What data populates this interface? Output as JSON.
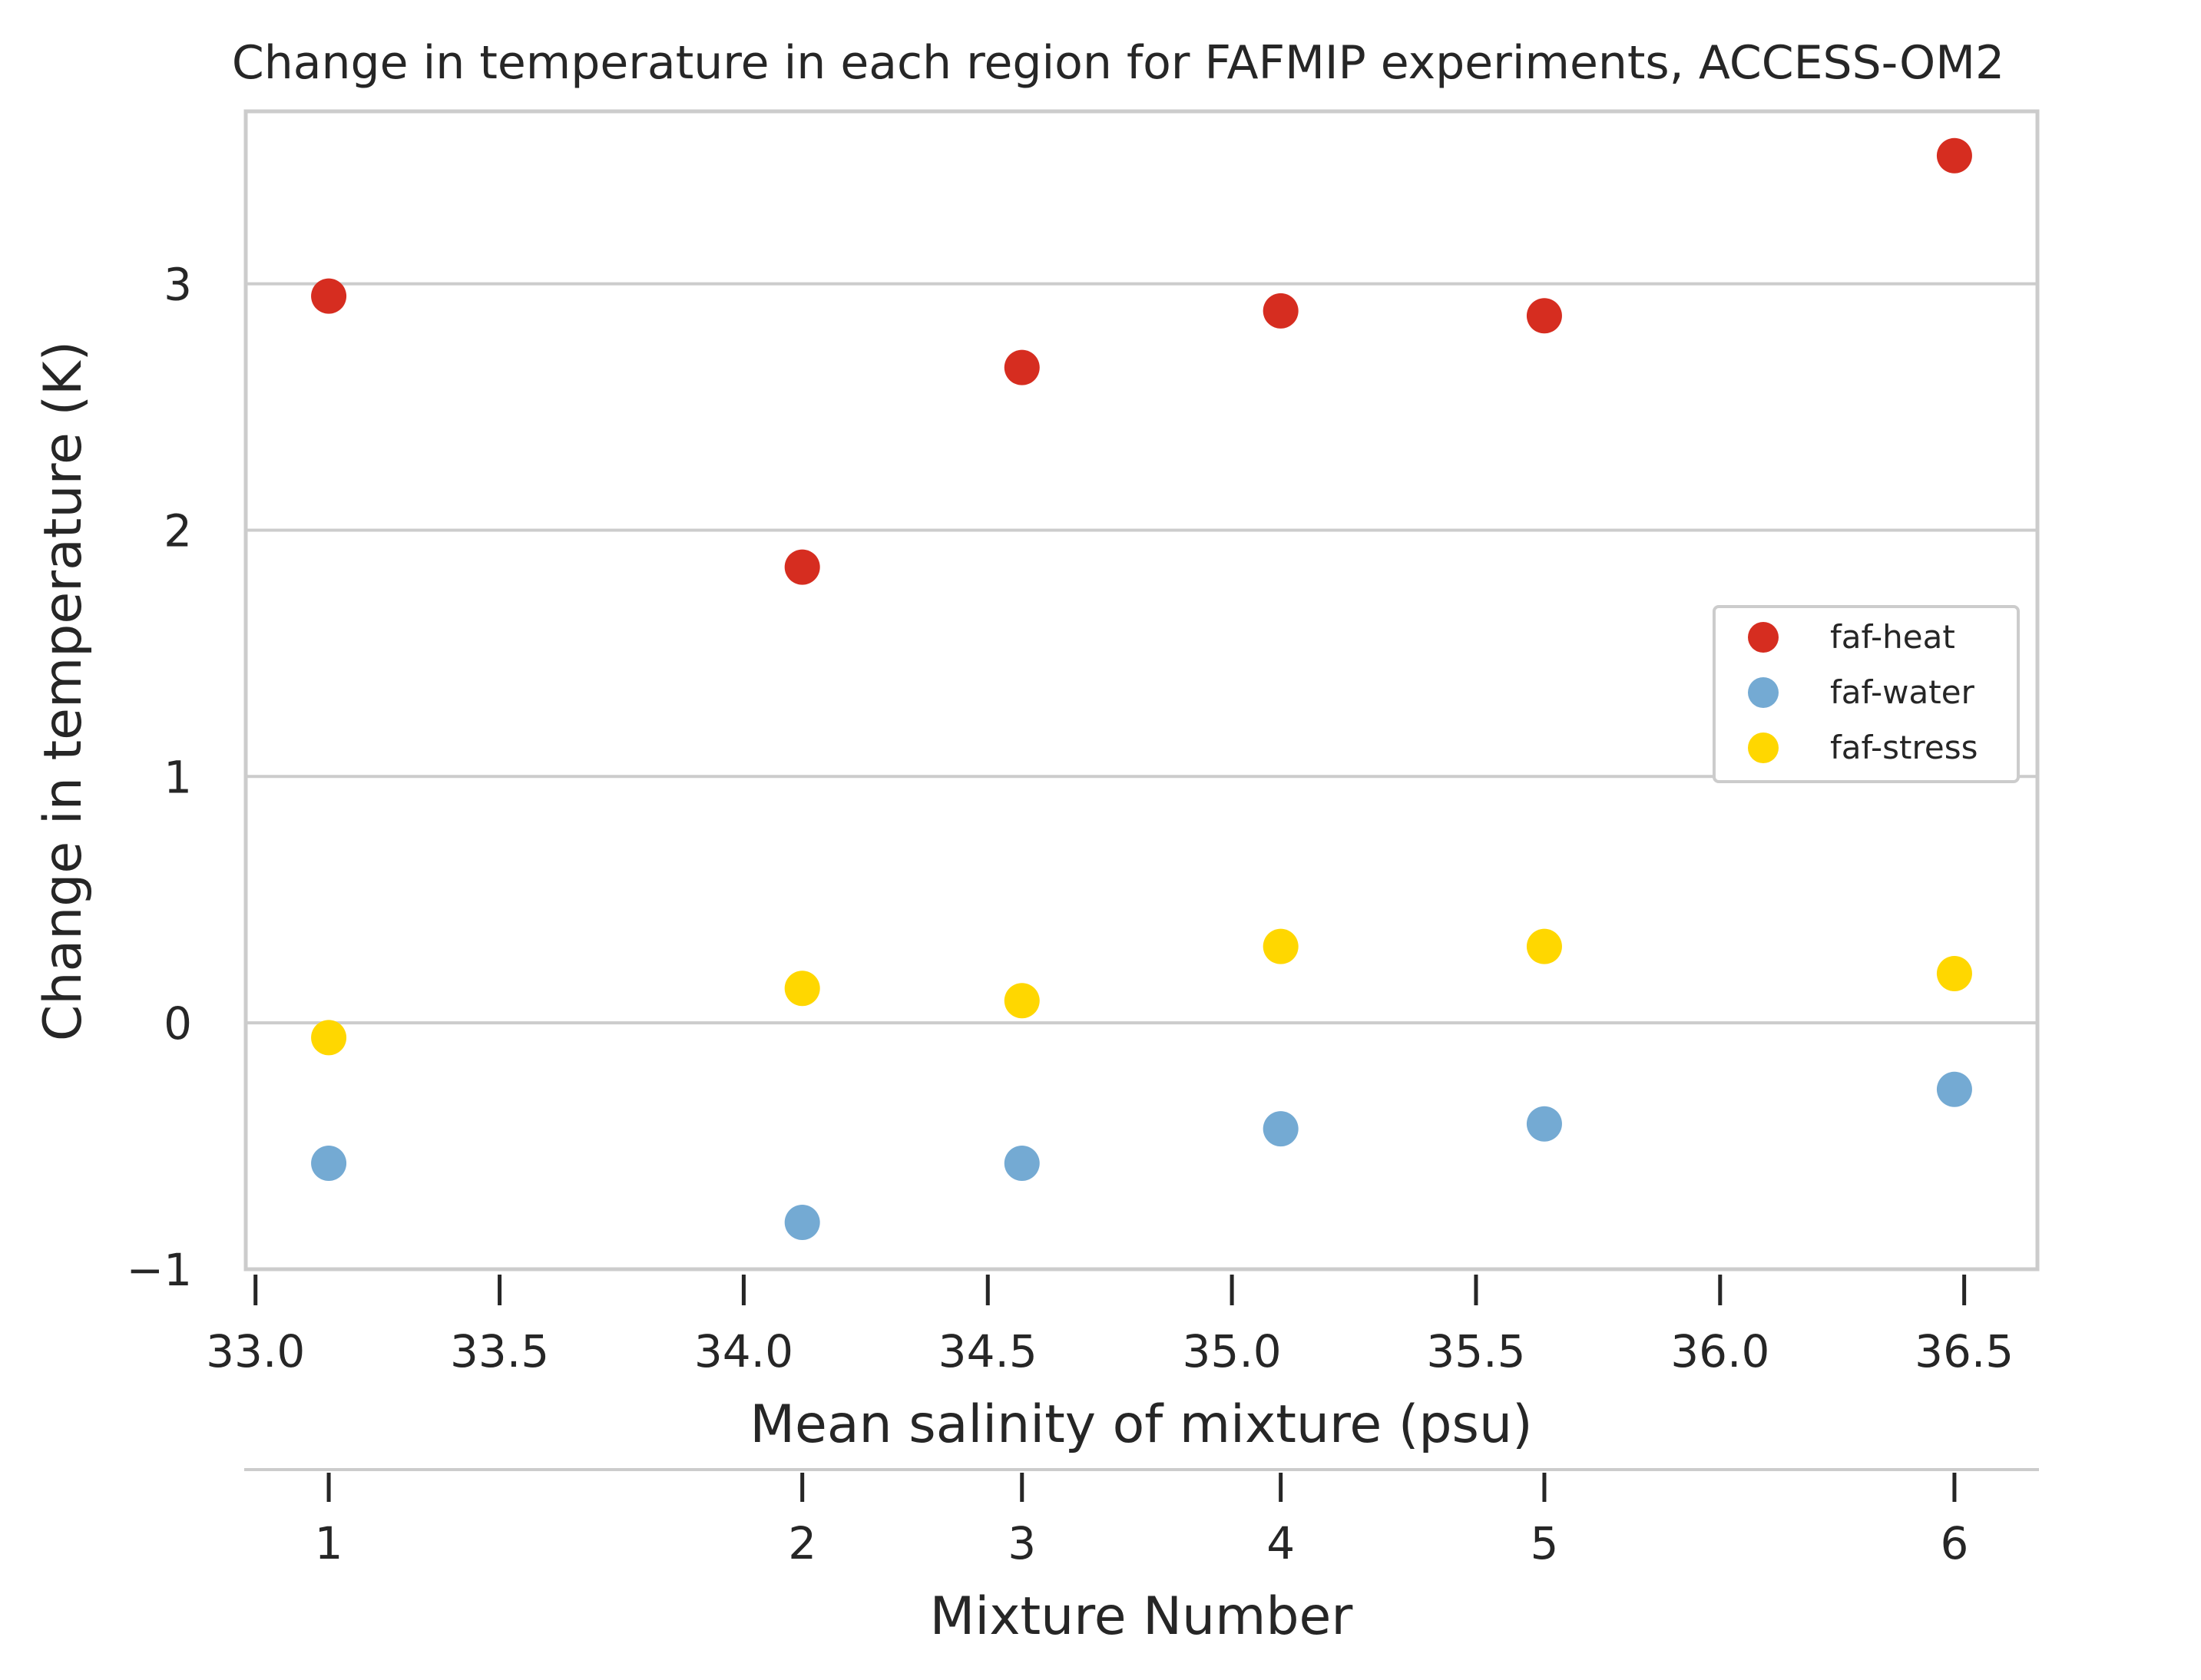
{
  "chart_data": {
    "type": "scatter",
    "title": "Change in temperature in each region for FAFMIP experiments, ACCESS-OM2",
    "xlabel": "Mean salinity of mixture (psu)",
    "ylabel": "Change in temperature (K)",
    "secondary_xlabel": "Mixture Number",
    "xlim": [
      32.98,
      36.65
    ],
    "ylim": [
      -1.0,
      3.7
    ],
    "xticks": [
      33.0,
      33.5,
      34.0,
      34.5,
      35.0,
      35.5,
      36.0,
      36.5
    ],
    "xtick_labels": [
      "33.0",
      "33.5",
      "34.0",
      "34.5",
      "35.0",
      "35.5",
      "36.0",
      "36.5"
    ],
    "yticks": [
      -1,
      0,
      1,
      2,
      3
    ],
    "ytick_labels": [
      "−1",
      "0",
      "1",
      "2",
      "3"
    ],
    "secondary_xticks": [
      33.15,
      34.12,
      34.57,
      35.1,
      35.64,
      36.48
    ],
    "secondary_xtick_labels": [
      "1",
      "2",
      "3",
      "4",
      "5",
      "6"
    ],
    "x": [
      33.15,
      34.12,
      34.57,
      35.1,
      35.64,
      36.48
    ],
    "grid": "horizontal",
    "legend_position": "center-right",
    "series": [
      {
        "name": "faf-heat",
        "color": "#d62d20",
        "values": [
          2.95,
          1.85,
          2.66,
          2.89,
          2.87,
          3.52
        ]
      },
      {
        "name": "faf-water",
        "color": "#74aad3",
        "values": [
          -0.57,
          -0.81,
          -0.57,
          -0.43,
          -0.41,
          -0.27
        ]
      },
      {
        "name": "faf-stress",
        "color": "#ffd700",
        "values": [
          -0.06,
          0.14,
          0.09,
          0.31,
          0.31,
          0.2
        ]
      }
    ]
  }
}
